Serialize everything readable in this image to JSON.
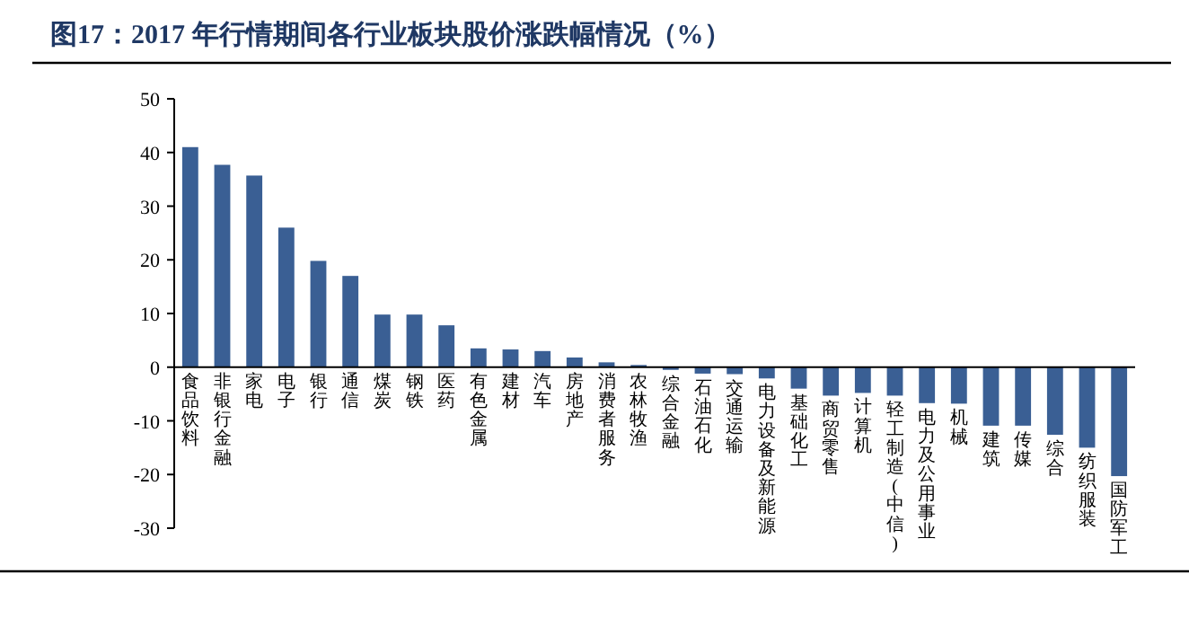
{
  "chart_data": {
    "type": "bar",
    "title": "图17：2017 年行情期间各行业板块股价涨跌幅情况（%）",
    "categories": [
      "食品饮料",
      "非银行金融",
      "家电",
      "电子",
      "银行",
      "通信",
      "煤炭",
      "钢铁",
      "医药",
      "有色金属",
      "建材",
      "汽车",
      "房地产",
      "消费者服务",
      "农林牧渔",
      "综合金融",
      "石油石化",
      "交通运输",
      "电力设备及新能源",
      "基础化工",
      "商贸零售",
      "计算机",
      "轻工制造(中信)",
      "电力及公用事业",
      "机械",
      "建筑",
      "传媒",
      "综合",
      "纺织服装",
      "国防军工"
    ],
    "values": [
      41,
      37.7,
      35.7,
      26,
      19.8,
      17,
      9.8,
      9.8,
      7.8,
      3.5,
      3.3,
      3,
      1.8,
      0.9,
      0.4,
      -0.5,
      -1.2,
      -1.3,
      -2.1,
      -4,
      -5.3,
      -4.8,
      -5.3,
      -6.7,
      -6.8,
      -10.9,
      -10.9,
      -12.6,
      -15,
      -20.3
    ],
    "color": "#3a5f94",
    "ylim": [
      -30,
      50
    ],
    "yticks": [
      -30,
      -20,
      -10,
      0,
      10,
      20,
      30,
      40,
      50
    ],
    "grid": false
  }
}
